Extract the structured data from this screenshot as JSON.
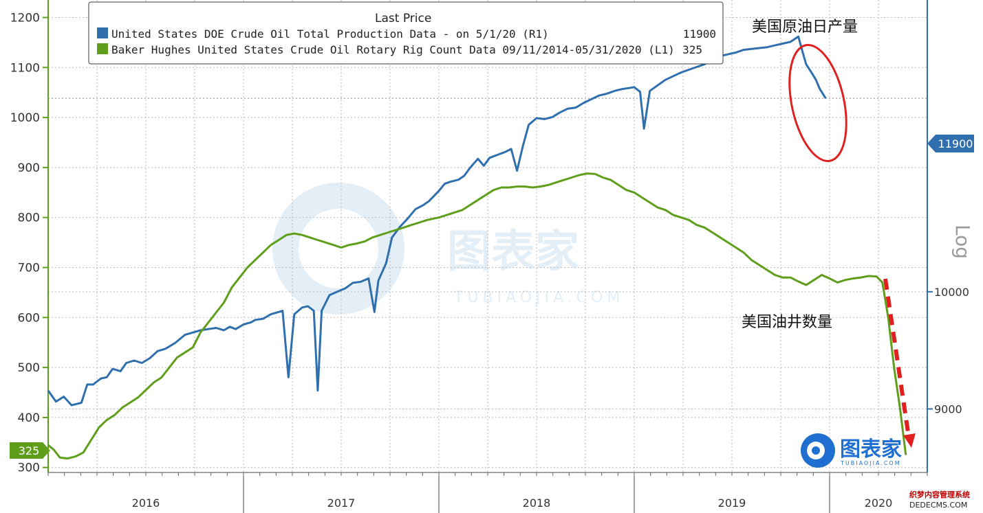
{
  "chart_data": {
    "type": "line",
    "title": "",
    "legend": {
      "title": "Last Price",
      "placement": "top-left",
      "entries": [
        {
          "color": "#2f6fad",
          "text": "United States DOE Crude Oil Total Production Data -  on 5/1/20  (R1)",
          "value": "11900"
        },
        {
          "color": "#5e9e1a",
          "text": "Baker Hughes United States Crude Oil Rotary Rig Count Data 09/11/2014-05/31/2020  (L1)",
          "value": "325"
        }
      ]
    },
    "x_axis": {
      "labels": [
        "2016",
        "2017",
        "2018",
        "2019",
        "2020"
      ],
      "range": [
        2016.0,
        2020.5
      ]
    },
    "y_left": {
      "ticks": [
        "300",
        "400",
        "500",
        "600",
        "700",
        "800",
        "900",
        "1000",
        "1100",
        "1200"
      ],
      "range": [
        290,
        1235
      ]
    },
    "y_right": {
      "label": "Log",
      "ticks": [
        "9000",
        "10000"
      ],
      "range": [
        8500,
        13000
      ],
      "scale": "log"
    },
    "grid": true,
    "series": [
      {
        "name": "United States DOE Crude Oil Total Production Data",
        "axis": "right",
        "color": "#2f6fad",
        "last_value_label": "11900",
        "points": [
          [
            2016.0,
            9150
          ],
          [
            2016.04,
            9060
          ],
          [
            2016.08,
            9100
          ],
          [
            2016.12,
            9030
          ],
          [
            2016.17,
            9050
          ],
          [
            2016.2,
            9200
          ],
          [
            2016.23,
            9200
          ],
          [
            2016.27,
            9250
          ],
          [
            2016.3,
            9260
          ],
          [
            2016.33,
            9330
          ],
          [
            2016.37,
            9310
          ],
          [
            2016.4,
            9380
          ],
          [
            2016.44,
            9400
          ],
          [
            2016.48,
            9380
          ],
          [
            2016.52,
            9420
          ],
          [
            2016.56,
            9480
          ],
          [
            2016.6,
            9500
          ],
          [
            2016.65,
            9550
          ],
          [
            2016.7,
            9620
          ],
          [
            2016.74,
            9640
          ],
          [
            2016.78,
            9660
          ],
          [
            2016.82,
            9670
          ],
          [
            2016.86,
            9680
          ],
          [
            2016.9,
            9660
          ],
          [
            2016.93,
            9690
          ],
          [
            2016.96,
            9670
          ],
          [
            2017.0,
            9710
          ],
          [
            2017.04,
            9730
          ],
          [
            2017.06,
            9750
          ],
          [
            2017.1,
            9760
          ],
          [
            2017.14,
            9800
          ],
          [
            2017.18,
            9820
          ],
          [
            2017.2,
            9830
          ],
          [
            2017.23,
            9260
          ],
          [
            2017.26,
            9800
          ],
          [
            2017.3,
            9860
          ],
          [
            2017.33,
            9870
          ],
          [
            2017.36,
            9830
          ],
          [
            2017.38,
            9150
          ],
          [
            2017.4,
            9830
          ],
          [
            2017.44,
            9970
          ],
          [
            2017.48,
            10000
          ],
          [
            2017.52,
            10030
          ],
          [
            2017.56,
            10080
          ],
          [
            2017.6,
            10090
          ],
          [
            2017.64,
            10120
          ],
          [
            2017.67,
            9820
          ],
          [
            2017.69,
            10100
          ],
          [
            2017.73,
            10260
          ],
          [
            2017.76,
            10500
          ],
          [
            2017.8,
            10600
          ],
          [
            2017.84,
            10680
          ],
          [
            2017.88,
            10770
          ],
          [
            2017.92,
            10810
          ],
          [
            2017.95,
            10850
          ],
          [
            2018.0,
            10950
          ],
          [
            2018.03,
            11020
          ],
          [
            2018.06,
            11040
          ],
          [
            2018.1,
            11060
          ],
          [
            2018.13,
            11100
          ],
          [
            2018.16,
            11180
          ],
          [
            2018.2,
            11270
          ],
          [
            2018.23,
            11200
          ],
          [
            2018.26,
            11280
          ],
          [
            2018.3,
            11310
          ],
          [
            2018.34,
            11340
          ],
          [
            2018.37,
            11370
          ],
          [
            2018.4,
            11150
          ],
          [
            2018.43,
            11400
          ],
          [
            2018.46,
            11620
          ],
          [
            2018.5,
            11690
          ],
          [
            2018.54,
            11680
          ],
          [
            2018.58,
            11700
          ],
          [
            2018.62,
            11750
          ],
          [
            2018.66,
            11790
          ],
          [
            2018.7,
            11800
          ],
          [
            2018.74,
            11850
          ],
          [
            2018.78,
            11890
          ],
          [
            2018.82,
            11930
          ],
          [
            2018.86,
            11950
          ],
          [
            2018.9,
            11980
          ],
          [
            2018.94,
            12000
          ],
          [
            2018.97,
            12010
          ],
          [
            2019.0,
            12020
          ],
          [
            2019.03,
            11970
          ],
          [
            2019.05,
            11580
          ],
          [
            2019.08,
            11980
          ],
          [
            2019.12,
            12040
          ],
          [
            2019.16,
            12100
          ],
          [
            2019.2,
            12140
          ],
          [
            2019.24,
            12180
          ],
          [
            2019.28,
            12210
          ],
          [
            2019.32,
            12240
          ],
          [
            2019.36,
            12270
          ],
          [
            2019.4,
            12320
          ],
          [
            2019.44,
            12360
          ],
          [
            2019.48,
            12380
          ],
          [
            2019.52,
            12400
          ],
          [
            2019.56,
            12430
          ],
          [
            2019.6,
            12440
          ],
          [
            2019.64,
            12450
          ],
          [
            2019.68,
            12460
          ],
          [
            2019.72,
            12480
          ],
          [
            2019.76,
            12500
          ],
          [
            2019.8,
            12520
          ],
          [
            2019.84,
            12580
          ],
          [
            2019.86,
            12420
          ],
          [
            2019.88,
            12270
          ],
          [
            2019.91,
            12170
          ],
          [
            2019.93,
            12100
          ],
          [
            2019.95,
            12000
          ],
          [
            2019.98,
            11900
          ]
        ]
      },
      {
        "name": "Baker Hughes United States Crude Oil Rotary Rig Count Data",
        "axis": "left",
        "color": "#5e9e1a",
        "last_value_label": "325",
        "points": [
          [
            2016.0,
            345
          ],
          [
            2016.03,
            335
          ],
          [
            2016.06,
            320
          ],
          [
            2016.1,
            318
          ],
          [
            2016.14,
            322
          ],
          [
            2016.18,
            330
          ],
          [
            2016.22,
            355
          ],
          [
            2016.26,
            380
          ],
          [
            2016.3,
            395
          ],
          [
            2016.34,
            405
          ],
          [
            2016.38,
            420
          ],
          [
            2016.42,
            430
          ],
          [
            2016.46,
            440
          ],
          [
            2016.5,
            455
          ],
          [
            2016.54,
            470
          ],
          [
            2016.58,
            480
          ],
          [
            2016.62,
            500
          ],
          [
            2016.66,
            520
          ],
          [
            2016.7,
            530
          ],
          [
            2016.74,
            540
          ],
          [
            2016.78,
            570
          ],
          [
            2016.82,
            590
          ],
          [
            2016.86,
            610
          ],
          [
            2016.9,
            630
          ],
          [
            2016.94,
            660
          ],
          [
            2016.98,
            680
          ],
          [
            2017.02,
            700
          ],
          [
            2017.06,
            715
          ],
          [
            2017.1,
            730
          ],
          [
            2017.14,
            745
          ],
          [
            2017.18,
            755
          ],
          [
            2017.22,
            765
          ],
          [
            2017.26,
            768
          ],
          [
            2017.3,
            765
          ],
          [
            2017.34,
            760
          ],
          [
            2017.38,
            755
          ],
          [
            2017.42,
            750
          ],
          [
            2017.46,
            745
          ],
          [
            2017.5,
            740
          ],
          [
            2017.54,
            745
          ],
          [
            2017.58,
            748
          ],
          [
            2017.62,
            752
          ],
          [
            2017.66,
            760
          ],
          [
            2017.7,
            765
          ],
          [
            2017.74,
            770
          ],
          [
            2017.78,
            775
          ],
          [
            2017.82,
            780
          ],
          [
            2017.86,
            785
          ],
          [
            2017.9,
            790
          ],
          [
            2017.94,
            795
          ],
          [
            2018.0,
            800
          ],
          [
            2018.04,
            805
          ],
          [
            2018.08,
            810
          ],
          [
            2018.12,
            815
          ],
          [
            2018.16,
            825
          ],
          [
            2018.2,
            835
          ],
          [
            2018.24,
            845
          ],
          [
            2018.28,
            855
          ],
          [
            2018.32,
            860
          ],
          [
            2018.36,
            860
          ],
          [
            2018.4,
            862
          ],
          [
            2018.44,
            862
          ],
          [
            2018.48,
            860
          ],
          [
            2018.52,
            862
          ],
          [
            2018.56,
            865
          ],
          [
            2018.6,
            870
          ],
          [
            2018.64,
            875
          ],
          [
            2018.68,
            880
          ],
          [
            2018.72,
            885
          ],
          [
            2018.76,
            888
          ],
          [
            2018.8,
            887
          ],
          [
            2018.84,
            880
          ],
          [
            2018.88,
            875
          ],
          [
            2018.92,
            865
          ],
          [
            2018.96,
            855
          ],
          [
            2019.0,
            850
          ],
          [
            2019.04,
            840
          ],
          [
            2019.08,
            830
          ],
          [
            2019.12,
            820
          ],
          [
            2019.16,
            815
          ],
          [
            2019.2,
            805
          ],
          [
            2019.24,
            800
          ],
          [
            2019.28,
            795
          ],
          [
            2019.32,
            785
          ],
          [
            2019.36,
            780
          ],
          [
            2019.4,
            770
          ],
          [
            2019.44,
            760
          ],
          [
            2019.48,
            750
          ],
          [
            2019.52,
            740
          ],
          [
            2019.56,
            730
          ],
          [
            2019.6,
            715
          ],
          [
            2019.64,
            705
          ],
          [
            2019.68,
            695
          ],
          [
            2019.72,
            685
          ],
          [
            2019.76,
            680
          ],
          [
            2019.8,
            680
          ],
          [
            2019.84,
            672
          ],
          [
            2019.88,
            665
          ],
          [
            2019.92,
            675
          ],
          [
            2019.96,
            685
          ],
          [
            2020.0,
            678
          ],
          [
            2020.04,
            670
          ],
          [
            2020.08,
            675
          ],
          [
            2020.12,
            678
          ],
          [
            2020.16,
            680
          ],
          [
            2020.2,
            683
          ],
          [
            2020.24,
            682
          ],
          [
            2020.27,
            670
          ],
          [
            2020.3,
            600
          ],
          [
            2020.33,
            500
          ],
          [
            2020.36,
            420
          ],
          [
            2020.39,
            325
          ]
        ]
      }
    ],
    "annotations": [
      {
        "text": "美国原油日产量",
        "target": "United States DOE Crude Oil Total Production Data"
      },
      {
        "text": "美国油井数量",
        "target": "Baker Hughes United States Crude Oil Rotary Rig Count Data"
      }
    ]
  },
  "watermark": {
    "brand": "图表家",
    "url": "TUBIAOJIA.COM"
  },
  "logo": {
    "brand": "图表家",
    "url": "TUBIAOJIA.COM"
  },
  "corner": {
    "line1": "织梦内容管理系统",
    "line2": "DEDECMS.COM"
  }
}
